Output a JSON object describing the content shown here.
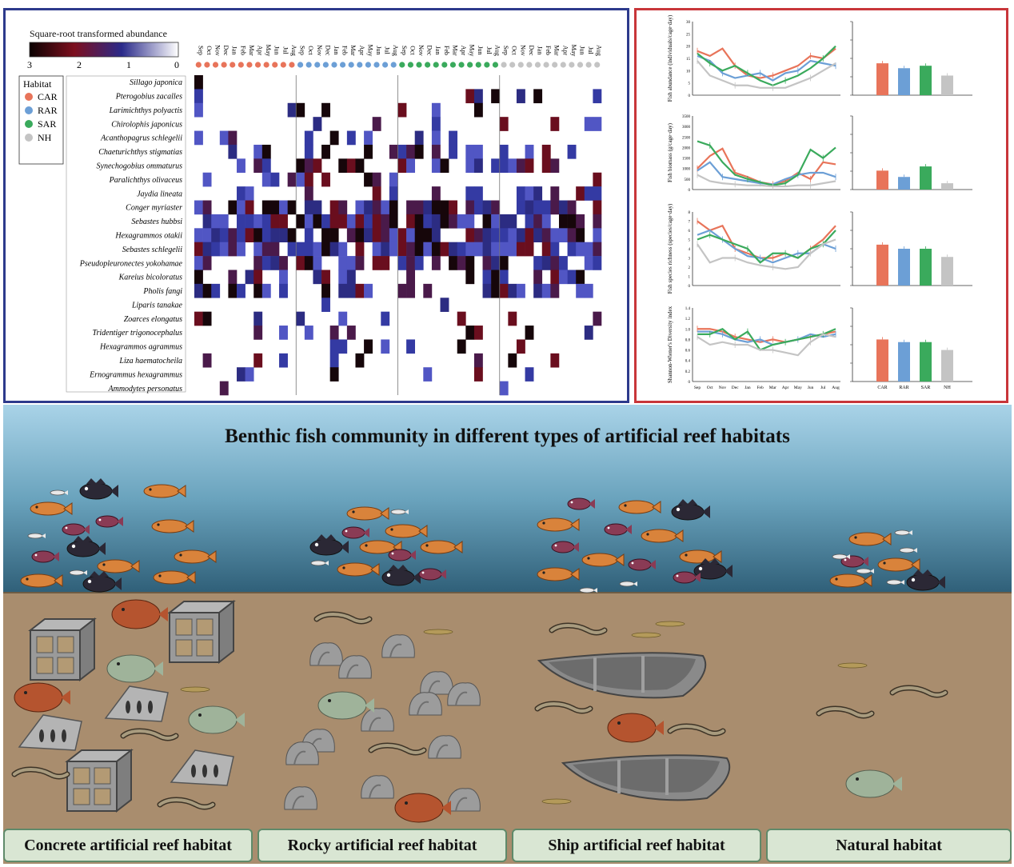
{
  "heatmap": {
    "legend_title": "Square-root transformed abundance",
    "scale_ticks": [
      "3",
      "2",
      "1",
      "0"
    ],
    "colors": [
      "#0b0202",
      "#7d0f1e",
      "#2a2a8a",
      "#ffffff"
    ],
    "habitat_legend_title": "Habitat",
    "habitats": [
      {
        "code": "CAR",
        "color": "#e8745a"
      },
      {
        "code": "RAR",
        "color": "#6c9fd6"
      },
      {
        "code": "SAR",
        "color": "#3aaa5c"
      },
      {
        "code": "NH",
        "color": "#c4c4c4"
      }
    ],
    "months": [
      "Sep",
      "Oct",
      "Nov",
      "Dec",
      "Jan",
      "Feb",
      "Mar",
      "Apr",
      "May",
      "Jun",
      "Jul",
      "Aug"
    ],
    "species": [
      "Sillago japonica",
      "Pterogobius zacalles",
      "Larimichthys polyactis",
      "Chirolophis japonicus",
      "Acanthopagrus schlegelii",
      "Chaeturichthys stigmatias",
      "Synechogobius ommaturus",
      "Paralichthys olivaceus",
      "Jaydia lineata",
      "Conger myriaster",
      "Sebastes hubbsi",
      "Hexagrammos otakii",
      "Sebastes schlegelii",
      "Pseudopleuronectes yokohamae",
      "Kareius bicoloratus",
      "Pholis fangi",
      "Liparis tanakae",
      "Zoarces elongatus",
      "Tridentiger trigonocephalus",
      "Hexagrammos agrammus",
      "Liza haematocheila",
      "Ernogrammus hexagrammus",
      "Ammodytes personatus"
    ]
  },
  "trends": {
    "months": [
      "Sep",
      "Oct",
      "Nov",
      "Dec",
      "Jan",
      "Feb",
      "Mar",
      "Apr",
      "May",
      "Jun",
      "Jul",
      "Aug"
    ],
    "bar_categories": [
      "CAR",
      "RAR",
      "SAR",
      "NH"
    ],
    "series_colors": [
      "#e8745a",
      "#6c9fd6",
      "#3aaa5c",
      "#c4c4c4"
    ],
    "panels": [
      {
        "ylabel": "Fish abundance (individuals/cage·day)",
        "yticks": [
          "0",
          "5",
          "10",
          "15",
          "20",
          "25",
          "30"
        ],
        "ymax": 30,
        "lines": [
          [
            18,
            16,
            19,
            12,
            8,
            7,
            8,
            10,
            12,
            16,
            15,
            19
          ],
          [
            16,
            14,
            9,
            7,
            8,
            9,
            6,
            9,
            10,
            14,
            13,
            12
          ],
          [
            17,
            13,
            10,
            12,
            9,
            6,
            4,
            6,
            8,
            11,
            15,
            20
          ],
          [
            14,
            8,
            6,
            4,
            4,
            3,
            3,
            3,
            5,
            7,
            10,
            13
          ]
        ],
        "bars": [
          13,
          11,
          12,
          8
        ],
        "barmax": 30
      },
      {
        "ylabel": "Fish biomass (g/cage·day)",
        "yticks": [
          "0",
          "500",
          "1000",
          "1500",
          "2000",
          "2500",
          "3000",
          "3500"
        ],
        "ymax": 3500,
        "lines": [
          [
            1000,
            1600,
            1950,
            800,
            600,
            350,
            250,
            400,
            800,
            500,
            1300,
            1200
          ],
          [
            900,
            1300,
            600,
            500,
            400,
            300,
            250,
            500,
            700,
            800,
            800,
            600
          ],
          [
            2300,
            2100,
            1300,
            700,
            500,
            350,
            200,
            300,
            700,
            1900,
            1500,
            2000
          ],
          [
            700,
            400,
            300,
            250,
            200,
            200,
            150,
            150,
            200,
            200,
            300,
            400
          ]
        ],
        "bars": [
          900,
          600,
          1100,
          300
        ],
        "barmax": 3500
      },
      {
        "ylabel": "Fish species richness (species/cage·day)",
        "yticks": [
          "0",
          "1",
          "2",
          "3",
          "4",
          "5",
          "6",
          "7",
          "8"
        ],
        "ymax": 8,
        "lines": [
          [
            7,
            6,
            6.5,
            4,
            3.5,
            3,
            3,
            3.5,
            3,
            4,
            5,
            6.5
          ],
          [
            5.5,
            6,
            5,
            4,
            3.2,
            3,
            2.5,
            3,
            3.5,
            3.5,
            4.5,
            4
          ],
          [
            5,
            5.5,
            5,
            4.5,
            4,
            2.5,
            3.5,
            3.5,
            3,
            4,
            4.5,
            6
          ],
          [
            4.5,
            2.5,
            3,
            3,
            2.5,
            2.2,
            2,
            1.8,
            2,
            3.5,
            4.5,
            5
          ]
        ],
        "bars": [
          5,
          4.5,
          4.5,
          3.5
        ],
        "barmax": 9
      },
      {
        "ylabel": "Shannon-Wiener's Diversity index",
        "yticks": [
          "0",
          "0.2",
          "0.4",
          "0.6",
          "0.8",
          "1.0",
          "1.2",
          "1.4"
        ],
        "ymax": 1.4,
        "lines": [
          [
            1.0,
            1.0,
            0.95,
            0.85,
            0.8,
            0.75,
            0.8,
            0.75,
            0.8,
            0.85,
            0.9,
            0.95
          ],
          [
            0.95,
            0.95,
            0.9,
            0.8,
            0.75,
            0.8,
            0.7,
            0.75,
            0.8,
            0.9,
            0.85,
            0.9
          ],
          [
            0.9,
            0.9,
            1.0,
            0.8,
            0.95,
            0.6,
            0.7,
            0.75,
            0.8,
            0.85,
            0.9,
            1.0
          ],
          [
            0.85,
            0.7,
            0.75,
            0.7,
            0.7,
            0.6,
            0.6,
            0.55,
            0.5,
            0.75,
            0.9,
            0.85
          ]
        ],
        "bars": [
          0.8,
          0.75,
          0.75,
          0.6
        ],
        "barmax": 1.4
      }
    ]
  },
  "scene": {
    "title": "Benthic fish community in different types of artificial reef habitats",
    "habitat_labels": [
      "Concrete artificial reef habitat",
      "Rocky artificial reef habitat",
      "Ship artificial reef habitat",
      "Natural habitat"
    ]
  }
}
